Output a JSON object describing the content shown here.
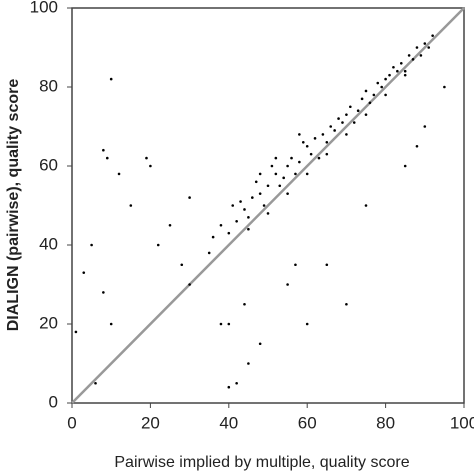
{
  "chart_data": {
    "type": "scatter",
    "x_label": "Pairwise implied by multiple, quality score",
    "y_label": "DIALIGN (pairwise), quality score",
    "xlim": [
      0,
      100
    ],
    "ylim": [
      0,
      100
    ],
    "xticks": [
      0,
      20,
      40,
      60,
      80,
      100
    ],
    "yticks": [
      0,
      20,
      40,
      60,
      80,
      100
    ],
    "color": "#000000",
    "x": [
      40,
      42,
      44,
      45,
      46,
      48,
      50,
      52,
      53,
      55,
      56,
      58,
      60,
      61,
      62,
      64,
      65,
      66,
      68,
      70,
      71,
      72,
      74,
      75,
      76,
      78,
      80,
      81,
      82,
      84,
      85,
      86,
      88,
      90,
      92,
      38,
      36,
      41,
      43,
      47,
      49,
      51,
      54,
      57,
      59,
      63,
      67,
      69,
      73,
      77,
      79,
      83,
      87,
      89,
      91,
      50,
      55,
      60,
      65,
      70,
      75,
      80,
      85,
      45,
      48,
      52,
      58,
      8,
      9,
      10,
      12,
      20,
      19,
      15,
      25,
      30,
      22,
      3,
      5,
      8,
      1,
      10,
      6,
      40,
      42,
      45,
      40,
      44,
      55,
      60,
      70,
      57,
      85,
      88,
      95,
      90,
      35,
      30,
      28,
      38,
      48,
      65,
      75
    ],
    "values": [
      43,
      46,
      49,
      47,
      52,
      53,
      55,
      58,
      55,
      60,
      62,
      61,
      65,
      63,
      67,
      68,
      66,
      70,
      72,
      73,
      75,
      71,
      77,
      79,
      76,
      81,
      82,
      83,
      85,
      86,
      84,
      88,
      90,
      91,
      93,
      45,
      42,
      50,
      51,
      56,
      50,
      60,
      57,
      58,
      66,
      62,
      69,
      71,
      74,
      78,
      80,
      84,
      87,
      88,
      90,
      48,
      53,
      58,
      63,
      68,
      73,
      78,
      83,
      44,
      58,
      62,
      68,
      64,
      62,
      82,
      58,
      60,
      62,
      50,
      45,
      52,
      40,
      33,
      40,
      28,
      18,
      20,
      5,
      4,
      5,
      10,
      20,
      25,
      30,
      20,
      25,
      35,
      60,
      65,
      80,
      70,
      38,
      30,
      35,
      20,
      15,
      35,
      50
    ]
  }
}
